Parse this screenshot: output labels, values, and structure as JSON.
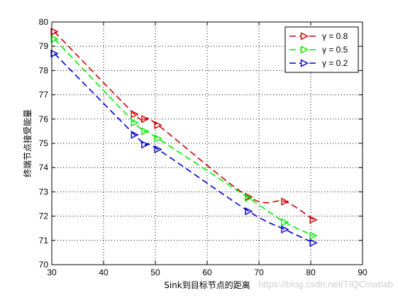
{
  "chart_data": {
    "type": "line",
    "title": "",
    "xlabel": "Sink到目标节点的距离",
    "ylabel": "终端节点接受能量",
    "xlim": [
      30,
      90
    ],
    "ylim": [
      70,
      80
    ],
    "xticks": [
      30,
      40,
      50,
      60,
      70,
      80,
      90
    ],
    "yticks": [
      70,
      71,
      72,
      73,
      74,
      75,
      76,
      77,
      78,
      79,
      80
    ],
    "grid": true,
    "grid_style": "dotted",
    "legend_position": "top-right",
    "marker": "right-triangle",
    "line_style": "dashed",
    "series": [
      {
        "name": "γ = 0.8",
        "color": "#cc0000",
        "x": [
          30.5,
          46,
          48,
          50.5,
          68,
          75,
          80.5
        ],
        "y": [
          79.6,
          76.2,
          76.0,
          75.75,
          72.8,
          72.6,
          71.85
        ]
      },
      {
        "name": "γ = 0.5",
        "color": "#00ee00",
        "x": [
          30.5,
          46,
          48,
          50.5,
          68,
          75,
          80.5
        ],
        "y": [
          79.3,
          75.85,
          75.5,
          75.2,
          72.75,
          71.75,
          71.2
        ]
      },
      {
        "name": "γ = 0.2",
        "color": "#0000cc",
        "x": [
          30.5,
          46,
          48,
          50.5,
          68,
          75,
          80.5
        ],
        "y": [
          78.7,
          75.35,
          74.95,
          74.75,
          72.2,
          71.45,
          70.9
        ]
      }
    ]
  },
  "watermark": "https://blog.csdn.net/TIQCmatlab"
}
